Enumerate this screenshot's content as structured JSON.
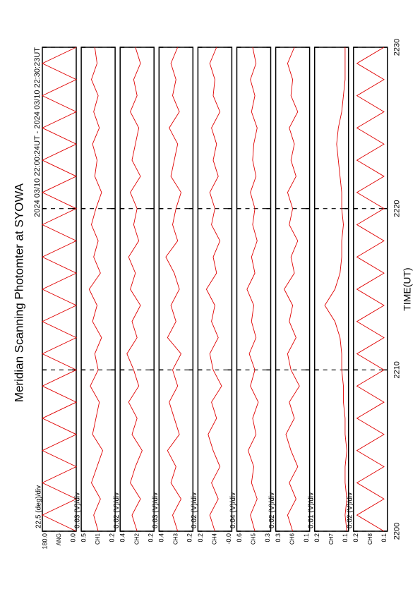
{
  "chart_data": {
    "type": "line",
    "title": "Meridian Scanning Photomter at SYOWA",
    "subtitle": "2024 03/10 22:00:24UT - 2024 03/10 22:30:23UT",
    "xlabel": "TIME(UT)",
    "xlim": [
      2200,
      2230
    ],
    "xticks": [
      2200,
      2210,
      2220,
      2230
    ],
    "grid": true,
    "color": "#e00000",
    "x": [
      2200,
      2201,
      2202,
      2203,
      2204,
      2205,
      2206,
      2207,
      2208,
      2209,
      2210,
      2211,
      2212,
      2213,
      2214,
      2215,
      2216,
      2217,
      2218,
      2219,
      2220,
      2221,
      2222,
      2223,
      2224,
      2225,
      2226,
      2227,
      2228,
      2229,
      2230
    ],
    "panels": [
      {
        "scale_label": "22.5 (deg)/div",
        "ylabel": "ANG",
        "ylim": [
          0,
          180
        ],
        "yticks": [
          {
            "value": 0,
            "label": "0.0"
          },
          {
            "value": 180,
            "label": "180.0"
          }
        ],
        "values": [
          0,
          180,
          0,
          180,
          0,
          180,
          0,
          180,
          0,
          180,
          0,
          180,
          0,
          180,
          0,
          180,
          0,
          180,
          0,
          180,
          0,
          180,
          0,
          180,
          0,
          180,
          0,
          180,
          0,
          180,
          0
        ]
      },
      {
        "scale_label": "0.03 (V)/div",
        "ylabel": "CH1",
        "ylim": [
          0.2,
          0.5
        ],
        "yticks": [
          0.2,
          0.5
        ],
        "values": [
          0.35,
          0.39,
          0.33,
          0.41,
          0.36,
          0.31,
          0.4,
          0.37,
          0.34,
          0.42,
          0.35,
          0.38,
          0.32,
          0.4,
          0.36,
          0.43,
          0.33,
          0.39,
          0.35,
          0.41,
          0.37,
          0.32,
          0.38,
          0.36,
          0.4,
          0.34,
          0.39,
          0.35,
          0.41,
          0.36,
          0.38
        ]
      },
      {
        "scale_label": "0.02 (V)/div",
        "ylabel": "CH2",
        "ylim": [
          0.2,
          0.4
        ],
        "yticks": [
          0.2,
          0.4
        ],
        "values": [
          0.3,
          0.33,
          0.28,
          0.34,
          0.31,
          0.27,
          0.33,
          0.3,
          0.35,
          0.29,
          0.32,
          0.36,
          0.3,
          0.33,
          0.28,
          0.34,
          0.31,
          0.35,
          0.29,
          0.32,
          0.3,
          0.34,
          0.28,
          0.33,
          0.31,
          0.29,
          0.34,
          0.3,
          0.32,
          0.28,
          0.31
        ]
      },
      {
        "scale_label": "0.03 (V)/div",
        "ylabel": "CH3",
        "ylim": [
          0.2,
          0.4
        ],
        "yticks": [
          0.2,
          0.4
        ],
        "values": [
          0.29,
          0.32,
          0.27,
          0.33,
          0.3,
          0.35,
          0.28,
          0.31,
          0.34,
          0.29,
          0.32,
          0.27,
          0.35,
          0.3,
          0.33,
          0.28,
          0.31,
          0.36,
          0.29,
          0.32,
          0.3,
          0.27,
          0.33,
          0.31,
          0.29,
          0.34,
          0.28,
          0.32,
          0.3,
          0.33,
          0.29
        ]
      },
      {
        "scale_label": "0.02 (V)/div",
        "ylabel": "CH4",
        "ylim": [
          0,
          0.2
        ],
        "yticks": [
          {
            "value": 0,
            "label": "-0.0"
          },
          0.2
        ],
        "values": [
          0.1,
          0.13,
          0.08,
          0.12,
          0.07,
          0.11,
          0.14,
          0.09,
          0.12,
          0.06,
          0.11,
          0.13,
          0.08,
          0.12,
          0.1,
          0.15,
          0.09,
          0.11,
          0.07,
          0.12,
          0.1,
          0.13,
          0.08,
          0.11,
          0.09,
          0.12,
          0.07,
          0.11,
          0.1,
          0.13,
          0.09
        ]
      },
      {
        "scale_label": "0.04 (V)/div",
        "ylabel": "CH5",
        "ylim": [
          0.3,
          0.6
        ],
        "yticks": [
          0.3,
          0.6
        ],
        "values": [
          0.44,
          0.48,
          0.42,
          0.47,
          0.45,
          0.5,
          0.43,
          0.46,
          0.41,
          0.48,
          0.44,
          0.49,
          0.43,
          0.47,
          0.45,
          0.51,
          0.44,
          0.47,
          0.42,
          0.46,
          0.44,
          0.48,
          0.43,
          0.46,
          0.45,
          0.42,
          0.47,
          0.44,
          0.48,
          0.43,
          0.46
        ]
      },
      {
        "scale_label": "0.02 (V)/div",
        "ylabel": "CH6",
        "ylim": [
          0.1,
          0.3
        ],
        "yticks": [
          0.1,
          0.3
        ],
        "values": [
          0.2,
          0.23,
          0.18,
          0.22,
          0.17,
          0.21,
          0.24,
          0.19,
          0.22,
          0.16,
          0.21,
          0.23,
          0.18,
          0.22,
          0.2,
          0.25,
          0.19,
          0.21,
          0.17,
          0.22,
          0.2,
          0.23,
          0.18,
          0.21,
          0.19,
          0.22,
          0.17,
          0.21,
          0.2,
          0.23,
          0.19
        ]
      },
      {
        "scale_label": "0.01 (V)/div",
        "ylabel": "CH7",
        "ylim": [
          0.1,
          0.2
        ],
        "yticks": [
          0.1,
          0.2
        ],
        "values": [
          0.105,
          0.11,
          0.105,
          0.11,
          0.11,
          0.105,
          0.11,
          0.11,
          0.115,
          0.115,
          0.12,
          0.12,
          0.125,
          0.14,
          0.17,
          0.14,
          0.125,
          0.12,
          0.12,
          0.115,
          0.12,
          0.12,
          0.125,
          0.13,
          0.135,
          0.13,
          0.12,
          0.115,
          0.11,
          0.11,
          0.11
        ]
      },
      {
        "scale_label": "0.02 (V)/div",
        "ylabel": "CH8",
        "ylim": [
          0.1,
          0.2
        ],
        "yticks": [
          0.1,
          0.2
        ],
        "values": [
          0.11,
          0.19,
          0.11,
          0.19,
          0.11,
          0.19,
          0.11,
          0.19,
          0.11,
          0.19,
          0.11,
          0.19,
          0.11,
          0.19,
          0.11,
          0.19,
          0.11,
          0.19,
          0.11,
          0.19,
          0.11,
          0.19,
          0.11,
          0.19,
          0.11,
          0.19,
          0.11,
          0.19,
          0.11,
          0.19,
          0.11
        ]
      }
    ]
  }
}
